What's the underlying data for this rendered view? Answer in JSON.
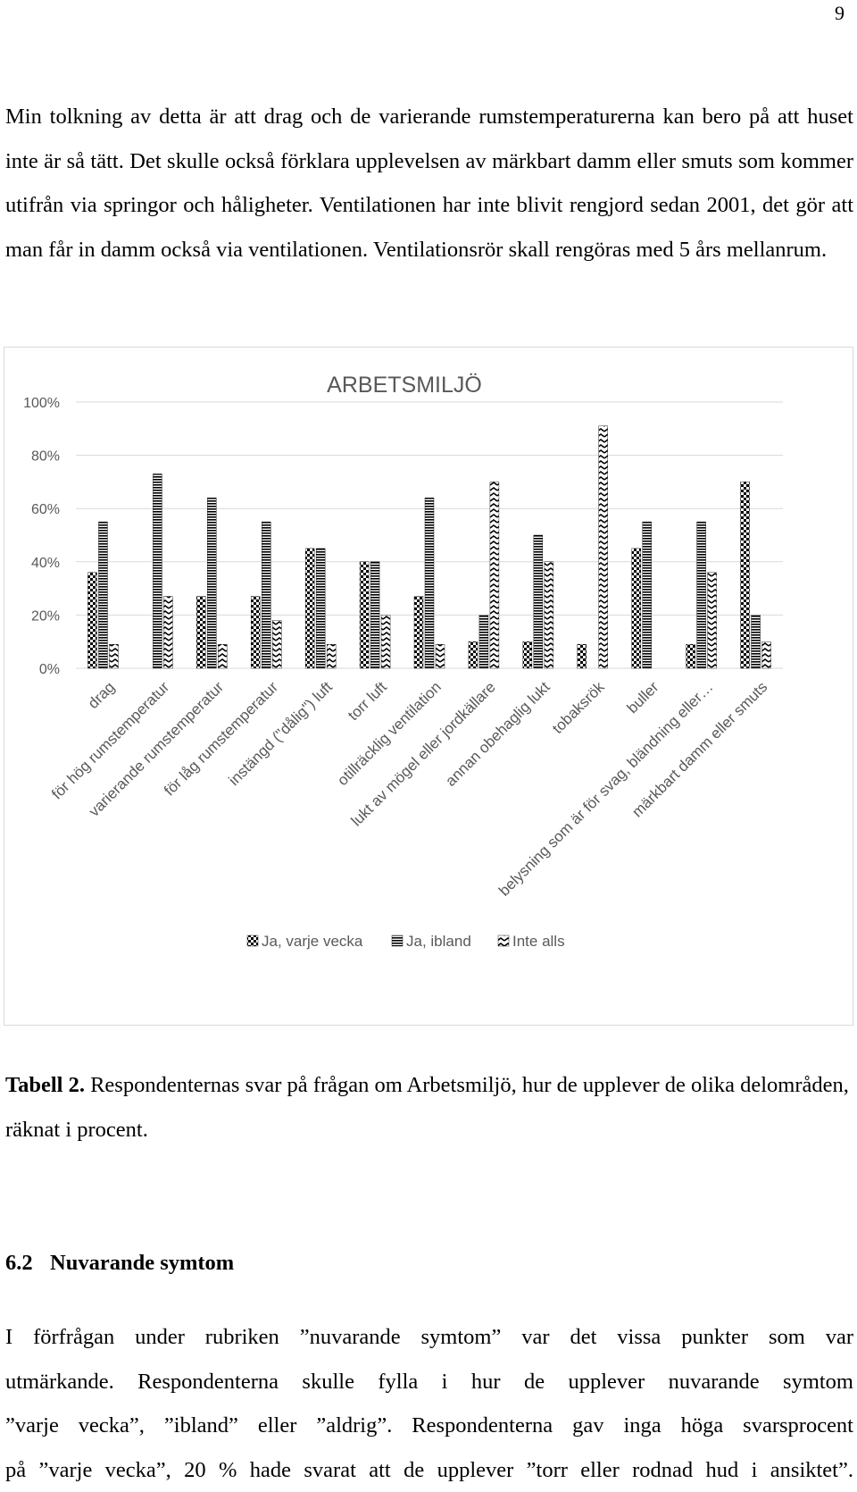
{
  "page": {
    "number": "9",
    "intro_paragraph": "Min tolkning av detta är att drag och de varierande rumstemperaturerna kan bero på att huset inte är så tätt. Det skulle också förklara upplevelsen av märkbart damm eller smuts som kommer utifrån via springor och håligheter. Ventilationen har inte blivit rengjord sedan 2001, det gör att man får in damm också via ventilationen. Ventilationsrör skall rengöras med 5 års mellanrum.",
    "caption_label": "Tabell 2.",
    "caption_text": " Respondenternas svar på frågan om Arbetsmiljö, hur de upplever de olika delområden, räknat i procent.",
    "section_number": "6.2",
    "section_title": "Nuvarande symtom",
    "body_lines": [
      "I förfrågan under rubriken ”nuvarande symtom” var det vissa punkter som var",
      "utmärkande. Respondenterna skulle fylla i hur de upplever nuvarande symtom",
      "”varje vecka”, ”ibland” eller ”aldrig”. Respondenterna gav inga höga svarsprocent",
      "på ”varje vecka”, 20 % hade svarat att de upplever ”torr eller rodnad hud i ansiktet”."
    ]
  },
  "chart_data": {
    "type": "bar",
    "title": "ARBETSMILJÖ",
    "xlabel": "",
    "ylabel": "",
    "ylim": [
      0,
      100
    ],
    "ytick_labels": [
      "0%",
      "20%",
      "40%",
      "60%",
      "80%",
      "100%"
    ],
    "yticks": [
      0,
      20,
      40,
      60,
      80,
      100
    ],
    "grid": true,
    "legend_position": "bottom",
    "categories": [
      "drag",
      "för hög rumstemperatur",
      "varierande rumstemperatur",
      "för låg rumstemperatur",
      "instängd (\"dålig\") luft",
      "torr luft",
      "otillräcklig ventilation",
      "lukt av mögel eller jordkällare",
      "annan obehaglig lukt",
      "tobaksrök",
      "buller",
      "belysning som är för svag, bländning eller…",
      "märkbart damm eller smuts"
    ],
    "series": [
      {
        "name": "Ja, varje vecka",
        "pattern": "checker",
        "values": [
          36,
          0,
          27,
          27,
          45,
          40,
          27,
          10,
          10,
          9,
          45,
          9,
          70
        ]
      },
      {
        "name": "Ja, ibland",
        "pattern": "horizontal-lines",
        "values": [
          55,
          73,
          64,
          55,
          45,
          40,
          64,
          20,
          50,
          0,
          55,
          55,
          20
        ]
      },
      {
        "name": "Inte alls",
        "pattern": "zigzag",
        "values": [
          9,
          27,
          9,
          18,
          9,
          20,
          9,
          70,
          40,
          91,
          0,
          36,
          10
        ]
      }
    ],
    "colors": {
      "ink": "#000000",
      "grid": "#d9d9d9",
      "axis_text": "#595959"
    }
  }
}
